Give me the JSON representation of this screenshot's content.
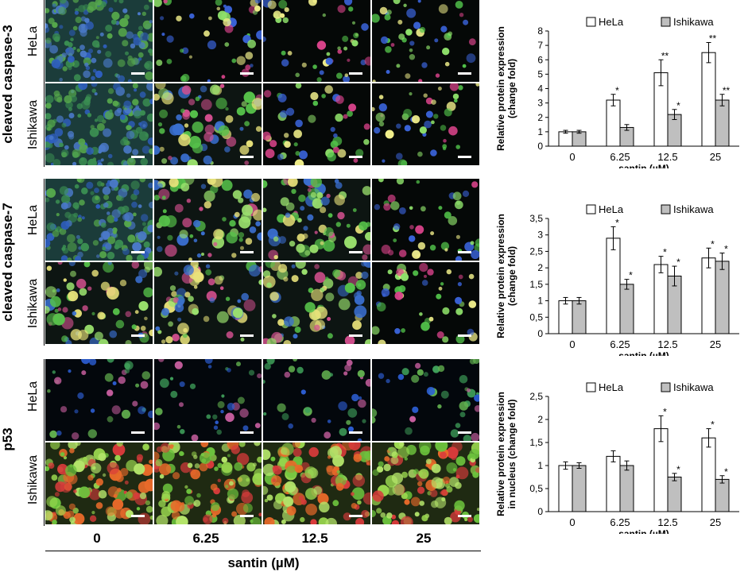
{
  "figure": {
    "sections": [
      {
        "label": "cleaved caspase-3",
        "rows": [
          "HeLa",
          "Ishikawa"
        ]
      },
      {
        "label": "cleaved caspase-7",
        "rows": [
          "HeLa",
          "Ishikawa"
        ]
      },
      {
        "label": "p53",
        "rows": [
          "HeLa",
          "Ishikawa"
        ]
      }
    ],
    "concentrations": [
      "0",
      "6.25",
      "12.5",
      "25"
    ],
    "bottom_label": "santin (µM)"
  },
  "chart_data": [
    {
      "type": "bar",
      "categories": [
        "0",
        "6.25",
        "12.5",
        "25"
      ],
      "series": [
        {
          "name": "HeLa",
          "values": [
            1.0,
            3.2,
            5.1,
            6.5
          ],
          "errors": [
            0.1,
            0.4,
            0.9,
            0.7
          ],
          "sig": [
            "",
            "*",
            "**",
            "**"
          ],
          "color": "#ffffff"
        },
        {
          "name": "Ishikawa",
          "values": [
            1.0,
            1.3,
            2.2,
            3.2
          ],
          "errors": [
            0.1,
            0.2,
            0.35,
            0.4
          ],
          "sig": [
            "",
            "",
            "*",
            "**"
          ],
          "color": "#bfbfbf"
        }
      ],
      "ylim": [
        0,
        8
      ],
      "yticks": [
        "0",
        "1",
        "2",
        "3",
        "4",
        "5",
        "6",
        "7",
        "8"
      ],
      "ylabel": [
        "Relative protein expression",
        "(change fold)"
      ],
      "xlabel": "santin (µM)",
      "legend": "top"
    },
    {
      "type": "bar",
      "categories": [
        "0",
        "6.25",
        "12.5",
        "25"
      ],
      "series": [
        {
          "name": "HeLa",
          "values": [
            1.0,
            2.9,
            2.1,
            2.3
          ],
          "errors": [
            0.1,
            0.35,
            0.25,
            0.3
          ],
          "sig": [
            "",
            "*",
            "*",
            "*"
          ],
          "color": "#ffffff"
        },
        {
          "name": "Ishikawa",
          "values": [
            1.0,
            1.5,
            1.75,
            2.2
          ],
          "errors": [
            0.1,
            0.15,
            0.3,
            0.25
          ],
          "sig": [
            "",
            "*",
            "*",
            "*"
          ],
          "color": "#bfbfbf"
        }
      ],
      "ylim": [
        0,
        3.5
      ],
      "yticks": [
        "0",
        "0,5",
        "1",
        "1,5",
        "2",
        "2,5",
        "3",
        "3,5"
      ],
      "ylabel": [
        "Relative protein expression",
        "(change fold)"
      ],
      "xlabel": "santin (µM)",
      "legend": "top"
    },
    {
      "type": "bar",
      "categories": [
        "0",
        "6.25",
        "12.5",
        "25"
      ],
      "series": [
        {
          "name": "HeLa",
          "values": [
            1.0,
            1.2,
            1.8,
            1.6
          ],
          "errors": [
            0.08,
            0.12,
            0.28,
            0.2
          ],
          "sig": [
            "",
            "",
            "*",
            "*"
          ],
          "color": "#ffffff"
        },
        {
          "name": "Ishikawa",
          "values": [
            1.0,
            1.0,
            0.75,
            0.7
          ],
          "errors": [
            0.06,
            0.1,
            0.08,
            0.08
          ],
          "sig": [
            "",
            "",
            "*",
            "*"
          ],
          "color": "#bfbfbf"
        }
      ],
      "ylim": [
        0,
        2.5
      ],
      "yticks": [
        "0",
        "0,5",
        "1",
        "1,5",
        "2",
        "2,5"
      ],
      "ylabel": [
        "Relative protein expression",
        "in nucleus (change fold)"
      ],
      "xlabel": "santin (µM)",
      "legend": "top"
    }
  ]
}
